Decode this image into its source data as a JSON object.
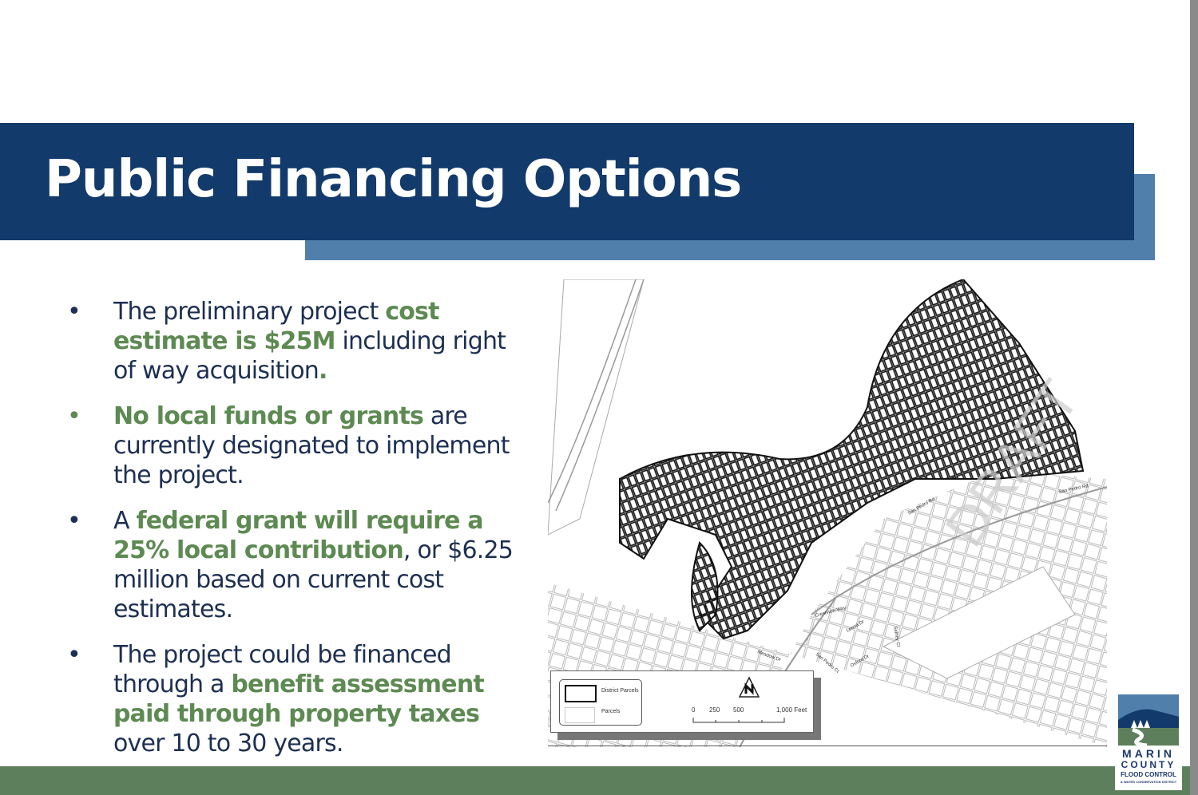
{
  "slide": {
    "title": "Public Financing Options",
    "bullets": [
      {
        "parts": [
          {
            "t": "The preliminary project ",
            "hl": false
          },
          {
            "t": "cost estimate is $25M",
            "hl": true
          },
          {
            "t": " including right of way acquisition",
            "hl": false
          },
          {
            "t": ".",
            "hl": true
          }
        ]
      },
      {
        "parts": [
          {
            "t": "No local funds or grants",
            "hl": true
          },
          {
            "t": " are currently designated to implement the project.",
            "hl": false
          }
        ]
      },
      {
        "parts": [
          {
            "t": "A ",
            "hl": false
          },
          {
            "t": "federal grant will require a 25% local contribution",
            "hl": true
          },
          {
            "t": ", or $6.25 million based on current cost estimates.",
            "hl": false
          }
        ]
      },
      {
        "parts": [
          {
            "t": "The project could be financed through a ",
            "hl": false
          },
          {
            "t": "benefit assessment paid through property taxes",
            "hl": true
          },
          {
            "t": " over 10 to 30 years.",
            "hl": false
          }
        ]
      }
    ],
    "bullet_marker": "•"
  },
  "map": {
    "watermark": "DRAFT",
    "streets": [
      "San Pedro Rd",
      "San Pedro Rd",
      "Crestview Way",
      "Leona Dr",
      "Sidney Ct",
      "Oxford Dr",
      "San Pedro Ct",
      "Meadow Dr"
    ],
    "legend": {
      "district_parcels": "District Parcels",
      "parcels": "Parcels"
    },
    "scale": {
      "ticks": [
        "0",
        "250",
        "500",
        "1,000 Feet"
      ]
    },
    "north_arrow": "north-arrow-icon"
  },
  "logo": {
    "line1": "MARIN",
    "line2": "COUNTY",
    "line3": "FLOOD CONTROL",
    "line4": "& WATER CONSERVATION DISTRICT"
  },
  "colors": {
    "navy": "#123a6b",
    "accent_blue": "#4f7faa",
    "green": "#5d8a52",
    "footer_green": "#5e7f5c"
  }
}
